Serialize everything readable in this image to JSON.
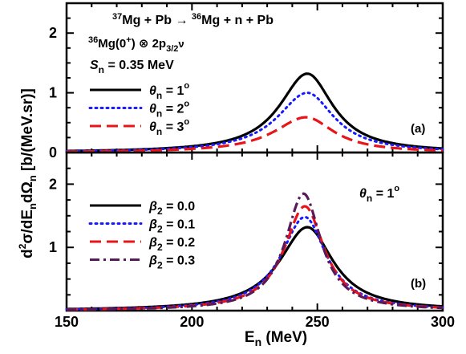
{
  "chart_data": [
    {
      "type": "line",
      "panel_label": "(a)",
      "x_range": [
        150,
        300
      ],
      "ylim": [
        0,
        2.5
      ],
      "x_ticks": [
        150,
        200,
        250,
        300
      ],
      "y_ticks": [
        0,
        1,
        2
      ],
      "grid": false,
      "annotations": {
        "reaction": {
          "a": "37",
          "b": "Mg + Pb → ",
          "c": "36",
          "d": "Mg + n + Pb"
        },
        "config": {
          "a": "36",
          "b": "Mg(0",
          "c": "+",
          "d": ") ⊗ 2p",
          "e": "3/2",
          "f": "ν"
        },
        "separation": {
          "sym": "S",
          "sub": "n",
          "text": " = 0.35 MeV"
        }
      },
      "legend_position": "left",
      "series": [
        {
          "name": "θn = 1°",
          "sym": "θ",
          "sub": "n",
          "val": " = 1",
          "deg": "o",
          "color": "#000000",
          "dash": "solid",
          "peak_x": 246,
          "peak_y": 1.32,
          "left_width": 13.5,
          "right_width": 12.5
        },
        {
          "name": "θn = 2°",
          "sym": "θ",
          "sub": "n",
          "val": " = 2",
          "deg": "o",
          "color": "#1a1aff",
          "dash": "dotted",
          "peak_x": 246,
          "peak_y": 1.0,
          "left_width": 14.5,
          "right_width": 13.0
        },
        {
          "name": "θn = 3°",
          "sym": "θ",
          "sub": "n",
          "val": " = 3",
          "deg": "o",
          "color": "#e8141a",
          "dash": "dashed",
          "peak_x": 245.5,
          "peak_y": 0.59,
          "left_width": 15.5,
          "right_width": 13.5
        }
      ]
    },
    {
      "type": "line",
      "panel_label": "(b)",
      "x_range": [
        150,
        300
      ],
      "ylim": [
        0,
        2.5
      ],
      "x_ticks": [
        150,
        200,
        250,
        300
      ],
      "y_ticks": [
        1,
        2
      ],
      "grid": false,
      "annotations": {
        "angle": {
          "sym": "θ",
          "sub": "n",
          "text": " = 1",
          "deg": "o"
        }
      },
      "legend_position": "left",
      "series": [
        {
          "name": "β2 = 0.0",
          "sym": "β",
          "sub": "2",
          "val": " = 0.0",
          "color": "#000000",
          "dash": "solid",
          "peak_x": 246,
          "peak_y": 1.32,
          "left_width": 13.5,
          "right_width": 12.5
        },
        {
          "name": "β2 = 0.1",
          "sym": "β",
          "sub": "2",
          "val": " = 0.1",
          "color": "#1a1aff",
          "dash": "dotted",
          "peak_x": 245,
          "peak_y": 1.48,
          "left_width": 11.5,
          "right_width": 10.5
        },
        {
          "name": "β2 = 0.2",
          "sym": "β",
          "sub": "2",
          "val": " = 0.2",
          "color": "#e8141a",
          "dash": "dashed",
          "peak_x": 245,
          "peak_y": 1.65,
          "left_width": 10.0,
          "right_width": 9.5
        },
        {
          "name": "β2 = 0.3",
          "sym": "β",
          "sub": "2",
          "val": " = 0.3",
          "color": "#5a1a5a",
          "dash": "dashdot",
          "peak_x": 244.5,
          "peak_y": 1.85,
          "left_width": 8.8,
          "right_width": 8.5
        }
      ]
    }
  ],
  "axes": {
    "xlabel": {
      "main": "E",
      "sub": "n",
      "rest": " (MeV)"
    },
    "ylabel": {
      "d": "d",
      "sup2": "2",
      "sigma": "σ/dE",
      "sub1": "n",
      "domega": "dΩ",
      "sub2": "n",
      "units": " [b/(MeV.sr)]"
    }
  }
}
